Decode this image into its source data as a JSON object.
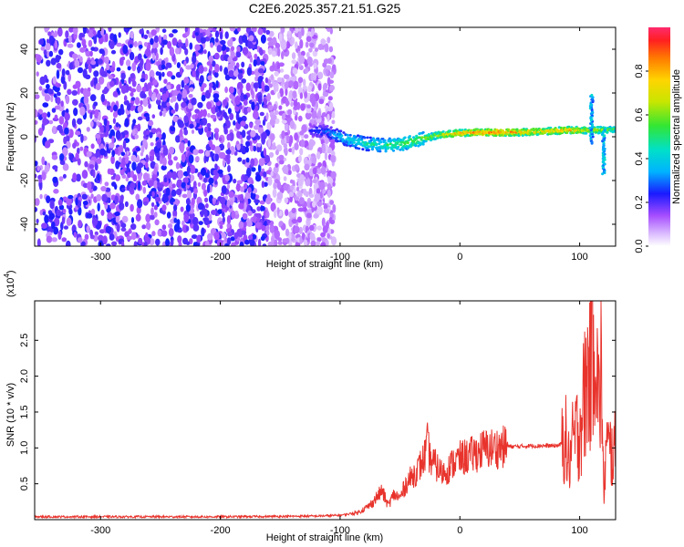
{
  "title": "C2E6.2025.357.21.51.G25",
  "colors": {
    "accent": "#e8332c",
    "axis": "#000000",
    "background": "#ffffff"
  },
  "chart_data": [
    {
      "type": "heatmap",
      "title": "",
      "xlabel": "Height of straight line (km)",
      "ylabel": "Frequency (Hz)",
      "xlim": [
        -355,
        130
      ],
      "ylim": [
        -50,
        50
      ],
      "xticks": [
        -300,
        -200,
        -100,
        0,
        100
      ],
      "xtick_labels": [
        "-300",
        "-200",
        "-100",
        "0",
        "100"
      ],
      "yticks": [
        -40,
        -20,
        0,
        20,
        40
      ],
      "ytick_labels": [
        "-40",
        "-20",
        "0",
        "20",
        "40"
      ],
      "noise_region_x": [
        -355,
        -105
      ],
      "ridge": [
        {
          "x": -125,
          "freq": 3,
          "amp": 0.25
        },
        {
          "x": -110,
          "freq": 2,
          "amp": 0.35
        },
        {
          "x": -95,
          "freq": -1,
          "amp": 0.45
        },
        {
          "x": -80,
          "freq": -3,
          "amp": 0.5
        },
        {
          "x": -65,
          "freq": -4,
          "amp": 0.55
        },
        {
          "x": -50,
          "freq": -3.5,
          "amp": 0.6
        },
        {
          "x": -35,
          "freq": -1.5,
          "amp": 0.65
        },
        {
          "x": -20,
          "freq": 0.5,
          "amp": 0.75
        },
        {
          "x": -5,
          "freq": 1.5,
          "amp": 0.85
        },
        {
          "x": 10,
          "freq": 2,
          "amp": 0.95
        },
        {
          "x": 30,
          "freq": 2,
          "amp": 1.0
        },
        {
          "x": 50,
          "freq": 2,
          "amp": 0.9
        },
        {
          "x": 70,
          "freq": 2.5,
          "amp": 0.85
        },
        {
          "x": 90,
          "freq": 3,
          "amp": 0.9
        },
        {
          "x": 105,
          "freq": 3,
          "amp": 0.8
        },
        {
          "x": 120,
          "freq": 3,
          "amp": 0.7
        },
        {
          "x": 130,
          "freq": 3.5,
          "amp": 0.6
        }
      ],
      "spikes": [
        {
          "x": 110,
          "freq_min": -3,
          "freq_max": 19
        },
        {
          "x": 120,
          "freq_min": -17,
          "freq_max": 3
        }
      ],
      "colorbar": {
        "label": "Normalized spectral amplitude",
        "range": [
          0,
          1
        ],
        "ticks": [
          0.0,
          0.2,
          0.4,
          0.6,
          0.8
        ],
        "tick_labels": [
          "0.0",
          "0.2",
          "0.4",
          "0.6",
          "0.8"
        ]
      }
    },
    {
      "type": "line",
      "title": "",
      "xlabel": "Height of straight line (km)",
      "ylabel": "SNR (10 * v/v)",
      "multiplier_label": "(x10",
      "multiplier_exponent": "4",
      "xlim": [
        -355,
        130
      ],
      "ylim": [
        0,
        3.05
      ],
      "xticks": [
        -300,
        -200,
        -100,
        0,
        100
      ],
      "xtick_labels": [
        "-300",
        "-200",
        "-100",
        "0",
        "100"
      ],
      "yticks": [
        0.5,
        1.0,
        1.5,
        2.0,
        2.5
      ],
      "ytick_labels": [
        "0.5",
        "1.0",
        "1.5",
        "2.0",
        "2.5"
      ],
      "series": [
        {
          "name": "SNR",
          "color": "#e8332c",
          "x": [
            -355,
            -300,
            -250,
            -200,
            -150,
            -120,
            -100,
            -85,
            -75,
            -70,
            -65,
            -60,
            -55,
            -50,
            -45,
            -40,
            -35,
            -30,
            -27,
            -25,
            -20,
            -15,
            -10,
            -5,
            0,
            10,
            20,
            30,
            40,
            50,
            60,
            70,
            80,
            85,
            88,
            90,
            95,
            100,
            105,
            110,
            112,
            114,
            116,
            118,
            120,
            122,
            125,
            130
          ],
          "values": [
            0.04,
            0.04,
            0.04,
            0.04,
            0.045,
            0.05,
            0.06,
            0.1,
            0.2,
            0.3,
            0.4,
            0.2,
            0.35,
            0.3,
            0.5,
            0.6,
            0.7,
            0.85,
            1.05,
            0.85,
            0.75,
            0.65,
            0.7,
            0.8,
            0.85,
            0.9,
            0.98,
            1.0,
            1.02,
            1.02,
            1.03,
            1.03,
            1.03,
            1.05,
            1.2,
            0.75,
            1.1,
            1.3,
            1.8,
            2.4,
            3.0,
            2.3,
            1.5,
            2.2,
            0.3,
            1.0,
            0.95,
            0.95
          ]
        }
      ]
    }
  ]
}
